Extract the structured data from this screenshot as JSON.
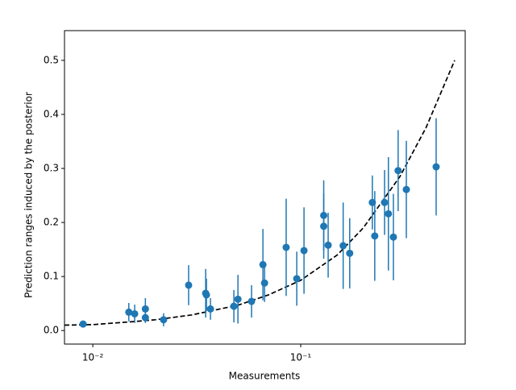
{
  "chart_data": {
    "type": "errorbar",
    "xlabel": "Measurements",
    "ylabel": "Prediction ranges induced by the posterior",
    "xscale": "log",
    "xlim": [
      0.00731,
      0.618
    ],
    "ylim": [
      -0.025,
      0.555
    ],
    "xticks": [
      {
        "value": 0.01,
        "label": "10⁻²"
      },
      {
        "value": 0.1,
        "label": "10⁻¹"
      }
    ],
    "yticks": [
      {
        "value": 0,
        "label": "0.0"
      },
      0.1,
      0.2,
      0.3,
      0.4,
      0.5
    ],
    "points": {
      "color": "#1f77b4",
      "x": [
        0.00898,
        0.0149,
        0.0159,
        0.0179,
        0.0179,
        0.0219,
        0.0289,
        0.0349,
        0.0352,
        0.0368,
        0.0477,
        0.0499,
        0.058,
        0.0658,
        0.067,
        0.0851,
        0.0957,
        0.1037,
        0.129,
        0.129,
        0.1355,
        0.16,
        0.172,
        0.221,
        0.227,
        0.253,
        0.264,
        0.279,
        0.294,
        0.322,
        0.448
      ],
      "y": [
        0.012,
        0.034,
        0.031,
        0.04,
        0.024,
        0.02,
        0.084,
        0.069,
        0.066,
        0.04,
        0.045,
        0.058,
        0.054,
        0.122,
        0.088,
        0.154,
        0.096,
        0.148,
        0.213,
        0.193,
        0.158,
        0.157,
        0.143,
        0.237,
        0.175,
        0.237,
        0.216,
        0.173,
        0.296,
        0.261,
        0.303
      ],
      "yerr": [
        0.005,
        0.017,
        0.017,
        0.02,
        0.01,
        0.012,
        0.037,
        0.045,
        0.03,
        0.02,
        0.03,
        0.045,
        0.03,
        0.066,
        0.035,
        0.09,
        0.05,
        0.08,
        0.065,
        0.06,
        0.06,
        0.08,
        0.065,
        0.05,
        0.083,
        0.06,
        0.105,
        0.08,
        0.075,
        0.09,
        0.09
      ]
    },
    "curve": {
      "color": "#000000",
      "dashed": true,
      "x": [
        0.00731,
        0.01,
        0.015,
        0.02,
        0.03,
        0.05,
        0.07,
        0.1,
        0.15,
        0.2,
        0.3,
        0.4,
        0.55
      ],
      "y": [
        0.01,
        0.011,
        0.016,
        0.02,
        0.029,
        0.047,
        0.066,
        0.093,
        0.14,
        0.19,
        0.285,
        0.375,
        0.5
      ]
    }
  }
}
